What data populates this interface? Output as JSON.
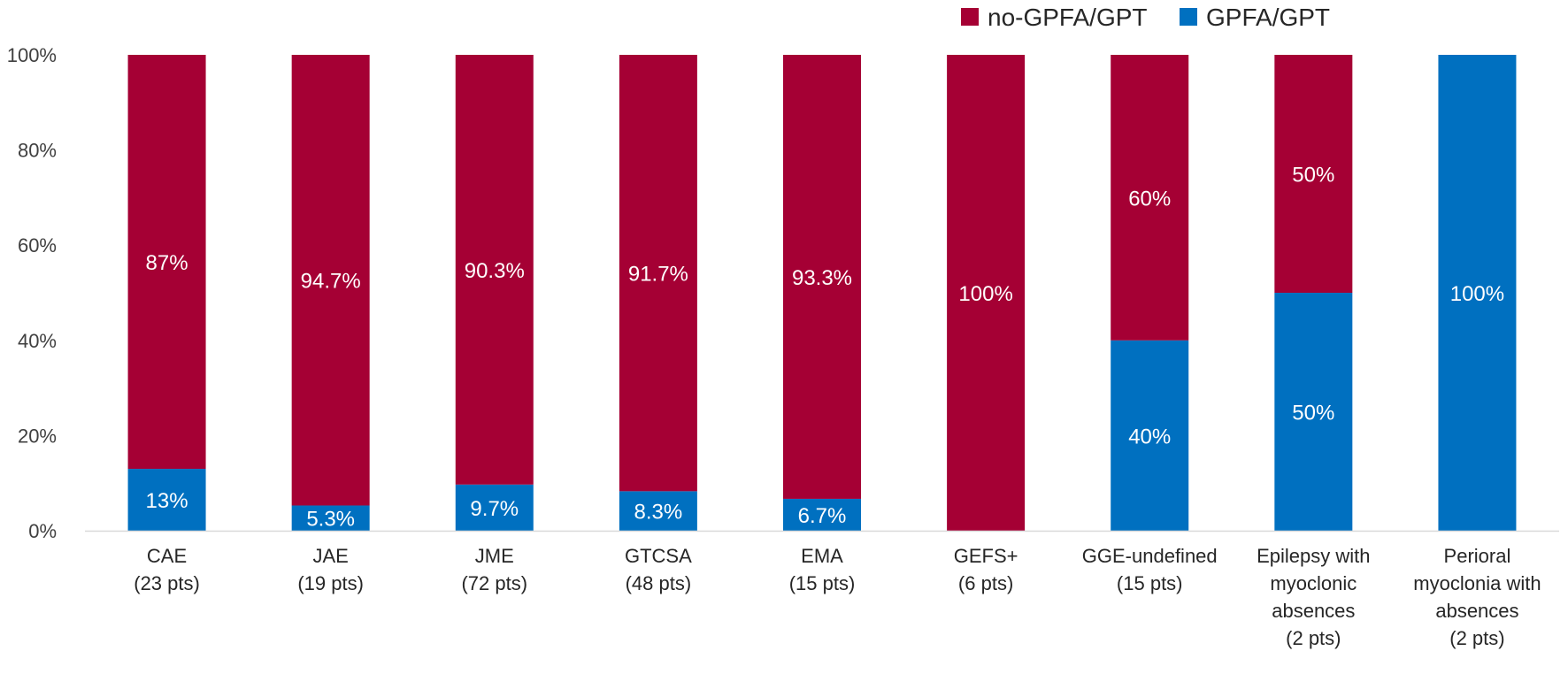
{
  "chart_data": {
    "type": "bar",
    "stacked": true,
    "categories": [
      [
        "CAE",
        "(23 pts)"
      ],
      [
        "JAE",
        "(19 pts)"
      ],
      [
        "JME",
        "(72 pts)"
      ],
      [
        "GTCSA",
        "(48 pts)"
      ],
      [
        "EMA",
        "(15 pts)"
      ],
      [
        "GEFS+",
        "(6 pts)"
      ],
      [
        "GGE-undefined",
        "(15 pts)"
      ],
      [
        "Epilepsy with",
        "myoclonic",
        "absences",
        "(2 pts)"
      ],
      [
        "Perioral",
        "myoclonia with",
        "absences",
        "(2 pts)"
      ]
    ],
    "series": [
      {
        "name": "GPFA/GPT",
        "color": "#0070C0",
        "values": [
          13,
          5.3,
          9.7,
          8.3,
          6.7,
          0,
          40,
          50,
          100
        ],
        "labels": [
          "13%",
          "5.3%",
          "9.7%",
          "8.3%",
          "6.7%",
          "",
          "40%",
          "50%",
          "100%"
        ]
      },
      {
        "name": "no-GPFA/GPT",
        "color": "#A50034",
        "values": [
          87,
          94.7,
          90.3,
          91.7,
          93.3,
          100,
          60,
          50,
          0
        ],
        "labels": [
          "87%",
          "94.7%",
          "90.3%",
          "91.7%",
          "93.3%",
          "100%",
          "60%",
          "50%",
          ""
        ]
      }
    ],
    "legend_order": [
      "no-GPFA/GPT",
      "GPFA/GPT"
    ],
    "legend_position": "top-right",
    "ylim": [
      0,
      100
    ],
    "yticks": [
      "0%",
      "20%",
      "40%",
      "60%",
      "80%",
      "100%"
    ],
    "grid": false,
    "title": "",
    "xlabel": "",
    "ylabel": ""
  }
}
